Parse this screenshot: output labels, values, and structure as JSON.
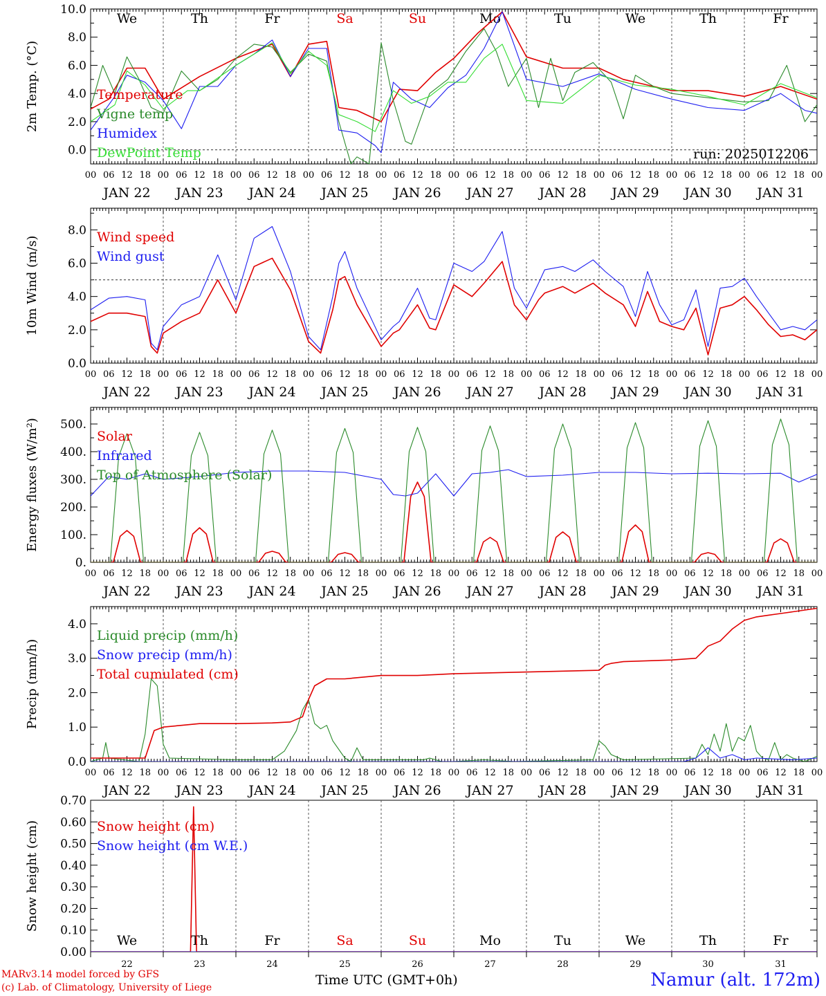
{
  "station": "Namur (alt. 172m)",
  "credits": [
    "MARv3.14 model forced by GFS",
    "(c) Lab. of Climatology, University of Liege"
  ],
  "x_axis_title": "Time UTC (GMT+0h)",
  "run_label": "run: 2025012206",
  "hour_ticks": [
    "00",
    "06",
    "12",
    "18"
  ],
  "day_dates": [
    "JAN 22",
    "JAN 23",
    "JAN 24",
    "JAN 25",
    "JAN 26",
    "JAN 27",
    "JAN 28",
    "JAN 29",
    "JAN 30",
    "JAN 31"
  ],
  "weekdays": [
    "We",
    "Th",
    "Fr",
    "Sa",
    "Su",
    "Mo",
    "Tu",
    "We",
    "Th",
    "Fr"
  ],
  "weekend_indices": [
    3,
    4
  ],
  "bottom_day_numbers": [
    "22",
    "23",
    "24",
    "25",
    "26",
    "27",
    "28",
    "29",
    "30",
    "31"
  ],
  "colors": {
    "red": "#e00000",
    "green": "#2a8a2a",
    "blue": "#1d1df0",
    "lightgreen": "#33dd33"
  },
  "chart_data": [
    {
      "type": "line",
      "ylabel": "2m Temp. (°C)",
      "ylim": [
        -1,
        10
      ],
      "yticks": [
        0,
        2,
        4,
        6,
        8,
        10
      ],
      "ytick_labels": [
        "0.0",
        "2.0",
        "4.0",
        "6.0",
        "8.0",
        "10.0"
      ],
      "ref_line": 0,
      "x_unit": "hours since JAN 22 00 UTC",
      "series": [
        {
          "name": "Temperature",
          "color": "red",
          "x": [
            0,
            6,
            12,
            18,
            24,
            36,
            48,
            60,
            66,
            72,
            78,
            82,
            88,
            96,
            102,
            108,
            114,
            120,
            128,
            136,
            144,
            156,
            168,
            176,
            180,
            186,
            192,
            204,
            216,
            228,
            240
          ],
          "y": [
            2.9,
            3.6,
            5.8,
            5.8,
            3.6,
            5.2,
            6.5,
            7.5,
            5.2,
            7.5,
            7.7,
            3.0,
            2.8,
            2.0,
            4.3,
            4.2,
            5.5,
            6.5,
            8.3,
            9.8,
            6.6,
            5.8,
            5.8,
            5.0,
            4.8,
            4.5,
            4.2,
            4.2,
            3.8,
            4.5,
            3.6
          ]
        },
        {
          "name": "Vigne temp",
          "color": "green",
          "x": [
            0,
            4,
            8,
            12,
            16,
            20,
            24,
            30,
            36,
            42,
            48,
            54,
            60,
            66,
            72,
            78,
            82,
            86,
            88,
            92,
            96,
            100,
            104,
            106,
            112,
            118,
            124,
            130,
            134,
            138,
            144,
            148,
            152,
            156,
            160,
            166,
            172,
            176,
            180,
            186,
            192,
            200,
            208,
            216,
            224,
            230,
            236,
            240
          ],
          "y": [
            3.0,
            6.0,
            4.0,
            6.6,
            5.0,
            3.0,
            2.6,
            5.6,
            4.2,
            5.0,
            6.5,
            7.5,
            7.3,
            5.5,
            6.8,
            6.3,
            2.0,
            -1.0,
            -0.5,
            -1.0,
            7.6,
            3.5,
            0.6,
            0.4,
            4.0,
            5.0,
            7.0,
            8.6,
            7.0,
            4.5,
            6.5,
            3.0,
            6.5,
            3.5,
            5.5,
            6.2,
            4.8,
            2.2,
            5.3,
            4.5,
            4.0,
            3.8,
            3.6,
            3.4,
            3.5,
            6.0,
            2.0,
            3.2
          ]
        },
        {
          "name": "Humidex",
          "color": "blue",
          "x": [
            0,
            8,
            12,
            18,
            24,
            30,
            36,
            42,
            48,
            54,
            60,
            66,
            72,
            78,
            82,
            88,
            94,
            96,
            100,
            106,
            112,
            118,
            124,
            130,
            136,
            144,
            156,
            168,
            180,
            192,
            204,
            216,
            228,
            236,
            240
          ],
          "y": [
            1.4,
            3.8,
            5.3,
            4.8,
            3.5,
            1.5,
            4.5,
            4.5,
            6.0,
            6.8,
            7.8,
            5.2,
            7.2,
            7.2,
            1.4,
            1.2,
            0.3,
            -0.2,
            4.8,
            3.6,
            3.0,
            4.4,
            5.3,
            7.2,
            9.8,
            5.0,
            4.5,
            5.4,
            4.3,
            3.6,
            3.0,
            2.8,
            4.0,
            2.8,
            2.6
          ]
        },
        {
          "name": "DewPoint Temp",
          "color": "lightgreen",
          "x": [
            0,
            8,
            12,
            18,
            24,
            32,
            36,
            48,
            60,
            66,
            72,
            78,
            82,
            88,
            94,
            100,
            106,
            112,
            118,
            124,
            130,
            136,
            144,
            156,
            168,
            180,
            192,
            204,
            216,
            228,
            240
          ],
          "y": [
            2.0,
            3.2,
            5.6,
            4.6,
            2.9,
            4.2,
            4.2,
            6.0,
            7.6,
            5.4,
            7.0,
            6.0,
            2.5,
            2.0,
            1.3,
            4.2,
            3.3,
            3.8,
            4.8,
            4.8,
            6.5,
            7.5,
            3.5,
            3.3,
            5.3,
            4.6,
            4.3,
            3.8,
            3.2,
            4.7,
            3.7
          ]
        }
      ]
    },
    {
      "type": "line",
      "ylabel": "10m Wind (m/s)",
      "ylim": [
        0,
        9.3
      ],
      "yticks": [
        0,
        2,
        4,
        6,
        8
      ],
      "ytick_labels": [
        "0.0",
        "2.0",
        "4.0",
        "6.0",
        "8.0"
      ],
      "ref_line": 5,
      "x_unit": "hours since JAN 22 00 UTC",
      "series": [
        {
          "name": "Wind speed",
          "color": "red",
          "x": [
            0,
            6,
            12,
            18,
            20,
            22,
            24,
            30,
            36,
            42,
            48,
            54,
            60,
            66,
            72,
            76,
            80,
            82,
            84,
            88,
            96,
            100,
            102,
            108,
            112,
            114,
            120,
            126,
            130,
            136,
            140,
            144,
            148,
            150,
            156,
            160,
            166,
            170,
            176,
            180,
            184,
            188,
            192,
            196,
            200,
            204,
            208,
            212,
            216,
            220,
            224,
            228,
            232,
            236,
            240
          ],
          "y": [
            2.5,
            3.0,
            3.0,
            2.8,
            1.0,
            0.6,
            1.8,
            2.5,
            3.0,
            5.0,
            3.0,
            5.8,
            6.3,
            4.4,
            1.3,
            0.6,
            3.2,
            5.0,
            5.2,
            3.5,
            1.0,
            1.8,
            2.0,
            3.5,
            2.1,
            2.0,
            4.7,
            4.0,
            4.8,
            6.1,
            3.5,
            2.6,
            3.8,
            4.2,
            4.6,
            4.2,
            4.8,
            4.2,
            3.5,
            2.2,
            4.3,
            2.5,
            2.2,
            2.0,
            3.3,
            0.5,
            3.3,
            3.5,
            4.0,
            3.2,
            2.3,
            1.6,
            1.7,
            1.4,
            2.0
          ]
        },
        {
          "name": "Wind gust",
          "color": "blue",
          "x": [
            0,
            6,
            12,
            18,
            20,
            22,
            24,
            30,
            36,
            42,
            48,
            54,
            60,
            66,
            72,
            76,
            80,
            82,
            84,
            88,
            96,
            100,
            102,
            108,
            112,
            114,
            120,
            126,
            130,
            136,
            140,
            144,
            148,
            150,
            156,
            160,
            166,
            170,
            176,
            180,
            184,
            188,
            192,
            196,
            200,
            204,
            208,
            212,
            216,
            220,
            224,
            228,
            232,
            236,
            240
          ],
          "y": [
            3.2,
            3.9,
            4.0,
            3.8,
            1.2,
            0.8,
            2.2,
            3.5,
            4.0,
            6.5,
            3.8,
            7.5,
            8.2,
            5.5,
            1.6,
            0.8,
            4.0,
            6.0,
            6.7,
            4.5,
            1.4,
            2.2,
            2.5,
            4.5,
            2.7,
            2.6,
            6.0,
            5.5,
            6.1,
            7.9,
            4.5,
            3.3,
            4.8,
            5.6,
            5.8,
            5.5,
            6.2,
            5.5,
            4.6,
            2.8,
            5.5,
            3.5,
            2.3,
            2.6,
            4.4,
            1.0,
            4.5,
            4.6,
            5.1,
            4.0,
            3.0,
            2.0,
            2.2,
            2.0,
            2.6
          ]
        }
      ]
    },
    {
      "type": "line",
      "ylabel": "Energy fluxes (W/m²)",
      "ylim": [
        0,
        560
      ],
      "yticks": [
        0,
        100,
        200,
        300,
        400,
        500
      ],
      "ytick_labels": [
        "0.",
        "100.",
        "200.",
        "300.",
        "400.",
        "500."
      ],
      "x_unit": "hours since JAN 22 00 UTC",
      "series": [
        {
          "name": "Solar",
          "color": "red",
          "peaks_x": [
            12,
            36,
            60,
            84,
            108,
            132,
            156,
            180,
            204,
            228
          ],
          "peaks_y": [
            115,
            125,
            40,
            35,
            290,
            90,
            110,
            135,
            35,
            85
          ]
        },
        {
          "name": "Infrared",
          "color": "blue",
          "x": [
            0,
            6,
            12,
            18,
            24,
            36,
            48,
            60,
            72,
            84,
            96,
            100,
            104,
            108,
            114,
            120,
            126,
            132,
            138,
            144,
            156,
            168,
            180,
            192,
            204,
            216,
            228,
            234,
            240
          ],
          "y": [
            240,
            310,
            300,
            320,
            300,
            310,
            325,
            330,
            330,
            325,
            300,
            245,
            240,
            250,
            320,
            240,
            320,
            325,
            335,
            310,
            315,
            325,
            325,
            320,
            322,
            320,
            322,
            290,
            318
          ]
        },
        {
          "name": "Top of Atmosphere (Solar)",
          "color": "green",
          "peaks_x": [
            12,
            36,
            60,
            84,
            108,
            132,
            156,
            180,
            204,
            228
          ],
          "peaks_y": [
            465,
            470,
            478,
            484,
            488,
            493,
            500,
            505,
            512,
            518
          ]
        }
      ]
    },
    {
      "type": "line",
      "ylabel": "Precip (mm/h)",
      "ylim": [
        0,
        4.5
      ],
      "yticks": [
        0,
        1,
        2,
        3,
        4
      ],
      "ytick_labels": [
        "0.0",
        "1.0",
        "2.0",
        "3.0",
        "4.0"
      ],
      "x_unit": "hours since JAN 22 00 UTC",
      "series": [
        {
          "name": "Liquid precip (mm/h)",
          "color": "green",
          "x": [
            0,
            4,
            5,
            6,
            16,
            18,
            20,
            22,
            24,
            26,
            48,
            60,
            64,
            68,
            70,
            72,
            74,
            76,
            78,
            80,
            84,
            86,
            88,
            90,
            110,
            112,
            114,
            116,
            120,
            130,
            136,
            140,
            166,
            168,
            170,
            172,
            176,
            200,
            202,
            204,
            206,
            208,
            210,
            212,
            214,
            216,
            218,
            220,
            222,
            224,
            226,
            228,
            230,
            232,
            236,
            240
          ],
          "y": [
            0,
            0.1,
            0.55,
            0.1,
            0,
            0.8,
            2.4,
            2.2,
            0.5,
            0.1,
            0.05,
            0.05,
            0.3,
            0.9,
            1.5,
            1.8,
            1.1,
            0.95,
            1.05,
            0.6,
            0.1,
            0,
            0.4,
            0.05,
            0.05,
            0.1,
            0.05,
            0,
            0,
            0.05,
            0.02,
            0,
            0.05,
            0.6,
            0.45,
            0.2,
            0.05,
            0.1,
            0.5,
            0.2,
            0.8,
            0.3,
            1.1,
            0.3,
            0.7,
            0.6,
            1.05,
            0.3,
            0.1,
            0.05,
            0.55,
            0.05,
            0.2,
            0.1,
            0,
            0.15
          ]
        },
        {
          "name": "Snow precip (mm/h)",
          "color": "blue",
          "x": [
            0,
            196,
            200,
            204,
            208,
            212,
            216,
            220,
            232,
            240
          ],
          "y": [
            0,
            0,
            0.1,
            0.4,
            0.1,
            0.2,
            0.05,
            0.1,
            0.05,
            0.1
          ]
        },
        {
          "name": "Total cumulated (cm)",
          "color": "red",
          "x": [
            0,
            6,
            18,
            21,
            24,
            30,
            36,
            48,
            60,
            66,
            70,
            72,
            74,
            78,
            84,
            96,
            108,
            120,
            144,
            168,
            170,
            172,
            176,
            192,
            200,
            204,
            208,
            212,
            216,
            220,
            224,
            228,
            232,
            236,
            240
          ],
          "y": [
            0.1,
            0.1,
            0.1,
            0.9,
            1.0,
            1.05,
            1.1,
            1.1,
            1.12,
            1.15,
            1.3,
            1.8,
            2.2,
            2.4,
            2.4,
            2.5,
            2.5,
            2.55,
            2.6,
            2.65,
            2.8,
            2.85,
            2.9,
            2.95,
            3.0,
            3.35,
            3.5,
            3.85,
            4.1,
            4.2,
            4.25,
            4.3,
            4.35,
            4.4,
            4.45
          ]
        }
      ]
    },
    {
      "type": "line",
      "ylabel": "Snow height (cm)",
      "ylim": [
        0,
        0.7
      ],
      "yticks": [
        0,
        0.1,
        0.2,
        0.3,
        0.4,
        0.5,
        0.6,
        0.7
      ],
      "ytick_labels": [
        "0.00",
        "0.10",
        "0.20",
        "0.30",
        "0.40",
        "0.50",
        "0.60",
        "0.70"
      ],
      "x_unit": "hours since JAN 22 00 UTC",
      "series": [
        {
          "name": "Snow height (cm)",
          "color": "red",
          "x": [
            0,
            33,
            34,
            35,
            240
          ],
          "y": [
            0,
            0,
            0.67,
            0,
            0
          ]
        },
        {
          "name": "Snow height (cm W.E.)",
          "color": "blue",
          "x": [
            0,
            240
          ],
          "y": [
            0,
            0
          ]
        }
      ]
    }
  ]
}
